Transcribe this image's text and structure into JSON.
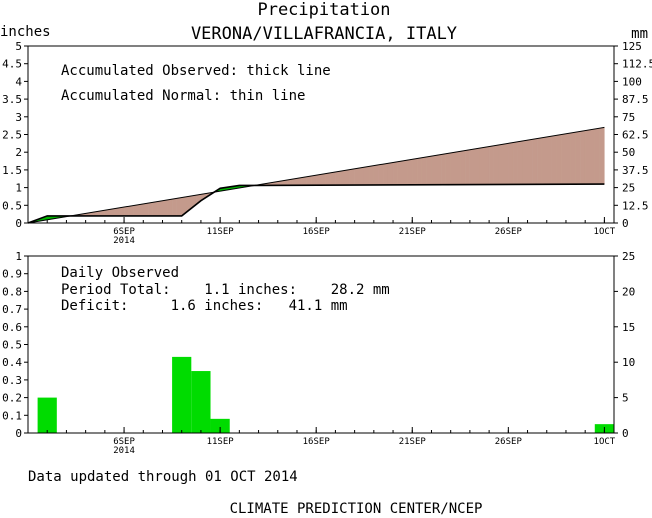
{
  "header": {
    "title": "Precipitation",
    "station": "VERONA/VILLAFRANCIA, ITALY",
    "left_unit": "inches",
    "right_unit": "mm"
  },
  "top_panel": {
    "legend_observed": "Accumulated Observed: thick line",
    "legend_normal": "Accumulated Normal: thin line"
  },
  "bottom_panel": {
    "label_daily": "Daily Observed",
    "label_period": "Period Total:    1.1 inches:    28.2 mm",
    "label_deficit": "Deficit:     1.6 inches:   41.1 mm"
  },
  "footer": {
    "updated": "Data updated through 01 OCT 2014",
    "credit": "CLIMATE PREDICTION CENTER/NCEP"
  },
  "colors": {
    "deficit_fill": "#c49a8c",
    "surplus_fill": "#00b400",
    "bar": "#00dc00",
    "line": "#000000"
  },
  "chart_data": [
    {
      "type": "area",
      "x_ticks": [
        {
          "day": 5,
          "label": "6SEP",
          "sub": "2014"
        },
        {
          "day": 10,
          "label": "11SEP"
        },
        {
          "day": 15,
          "label": "16SEP"
        },
        {
          "day": 20,
          "label": "21SEP"
        },
        {
          "day": 25,
          "label": "26SEP"
        },
        {
          "day": 30,
          "label": "1OCT"
        }
      ],
      "xlim": [
        0,
        30.5
      ],
      "ylim": [
        0,
        5
      ],
      "y_ticks_left": [
        "0",
        "0.5",
        "1",
        "1.5",
        "2",
        "2.5",
        "3",
        "3.5",
        "4",
        "4.5",
        "5"
      ],
      "y2lim": [
        0,
        125
      ],
      "y_ticks_right": [
        "0",
        "12.5",
        "25",
        "37.5",
        "50",
        "62.5",
        "75",
        "87.5",
        "100",
        "112.5",
        "125"
      ],
      "series": [
        {
          "name": "Accumulated Observed",
          "x": [
            0,
            1,
            2,
            8,
            9,
            10,
            11,
            30
          ],
          "y": [
            0,
            0.2,
            0.2,
            0.2,
            0.63,
            0.98,
            1.06,
            1.1
          ]
        },
        {
          "name": "Accumulated Normal",
          "x": [
            0,
            30
          ],
          "y": [
            0,
            2.7
          ]
        }
      ]
    },
    {
      "type": "bar",
      "xlim": [
        0,
        30.5
      ],
      "ylim": [
        0,
        1
      ],
      "y_ticks_left": [
        "0",
        "0.1",
        "0.2",
        "0.3",
        "0.4",
        "0.5",
        "0.6",
        "0.7",
        "0.8",
        "0.9",
        "1"
      ],
      "y2lim": [
        0,
        25
      ],
      "y_ticks_right": [
        "0",
        "5",
        "10",
        "15",
        "20",
        "25"
      ],
      "bars": [
        {
          "day": 1,
          "value": 0.2
        },
        {
          "day": 8,
          "value": 0.43
        },
        {
          "day": 9,
          "value": 0.35
        },
        {
          "day": 10,
          "value": 0.08
        },
        {
          "day": 30,
          "value": 0.05
        }
      ]
    }
  ]
}
